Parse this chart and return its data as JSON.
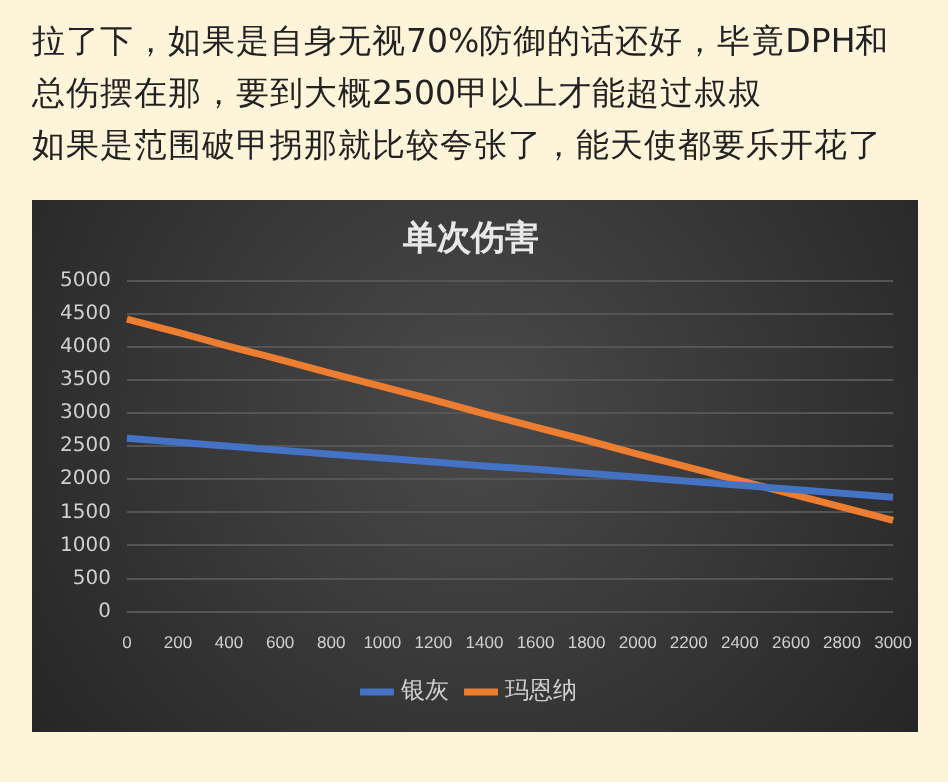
{
  "chart_data": {
    "type": "line",
    "title": "单次伤害",
    "annotations": [
      "拉了下，如果是自身无视70%防御的话还好，毕竟DPH和总伤摆在那，要到大概2500甲以上才能超过叔叔",
      "如果是范围破甲拐那就比较夸张了，能天使都要乐开花了"
    ],
    "categories": [
      "0",
      "200",
      "400",
      "600",
      "800",
      "1000",
      "1200",
      "1400",
      "1600",
      "1800",
      "2000",
      "2200",
      "2400",
      "2600",
      "2800",
      "3000"
    ],
    "series": [
      {
        "name": "银灰",
        "color": "#4472c4",
        "values": [
          2620,
          2560,
          2500,
          2440,
          2380,
          2320,
          2260,
          2200,
          2150,
          2090,
          2030,
          1970,
          1910,
          1850,
          1790,
          1730
        ]
      },
      {
        "name": "玛恩纳",
        "color": "#ed7d31",
        "values": [
          4420,
          4220,
          4010,
          3810,
          3600,
          3400,
          3200,
          2990,
          2790,
          2590,
          2380,
          2180,
          1980,
          1780,
          1580,
          1380
        ]
      }
    ],
    "ylim": [
      0,
      5000
    ],
    "yticks": [
      0,
      500,
      1000,
      1500,
      2000,
      2500,
      3000,
      3500,
      4000,
      4500,
      5000
    ],
    "grid": "y",
    "legend": "bottom",
    "marker": "none",
    "line_style": "solid"
  }
}
